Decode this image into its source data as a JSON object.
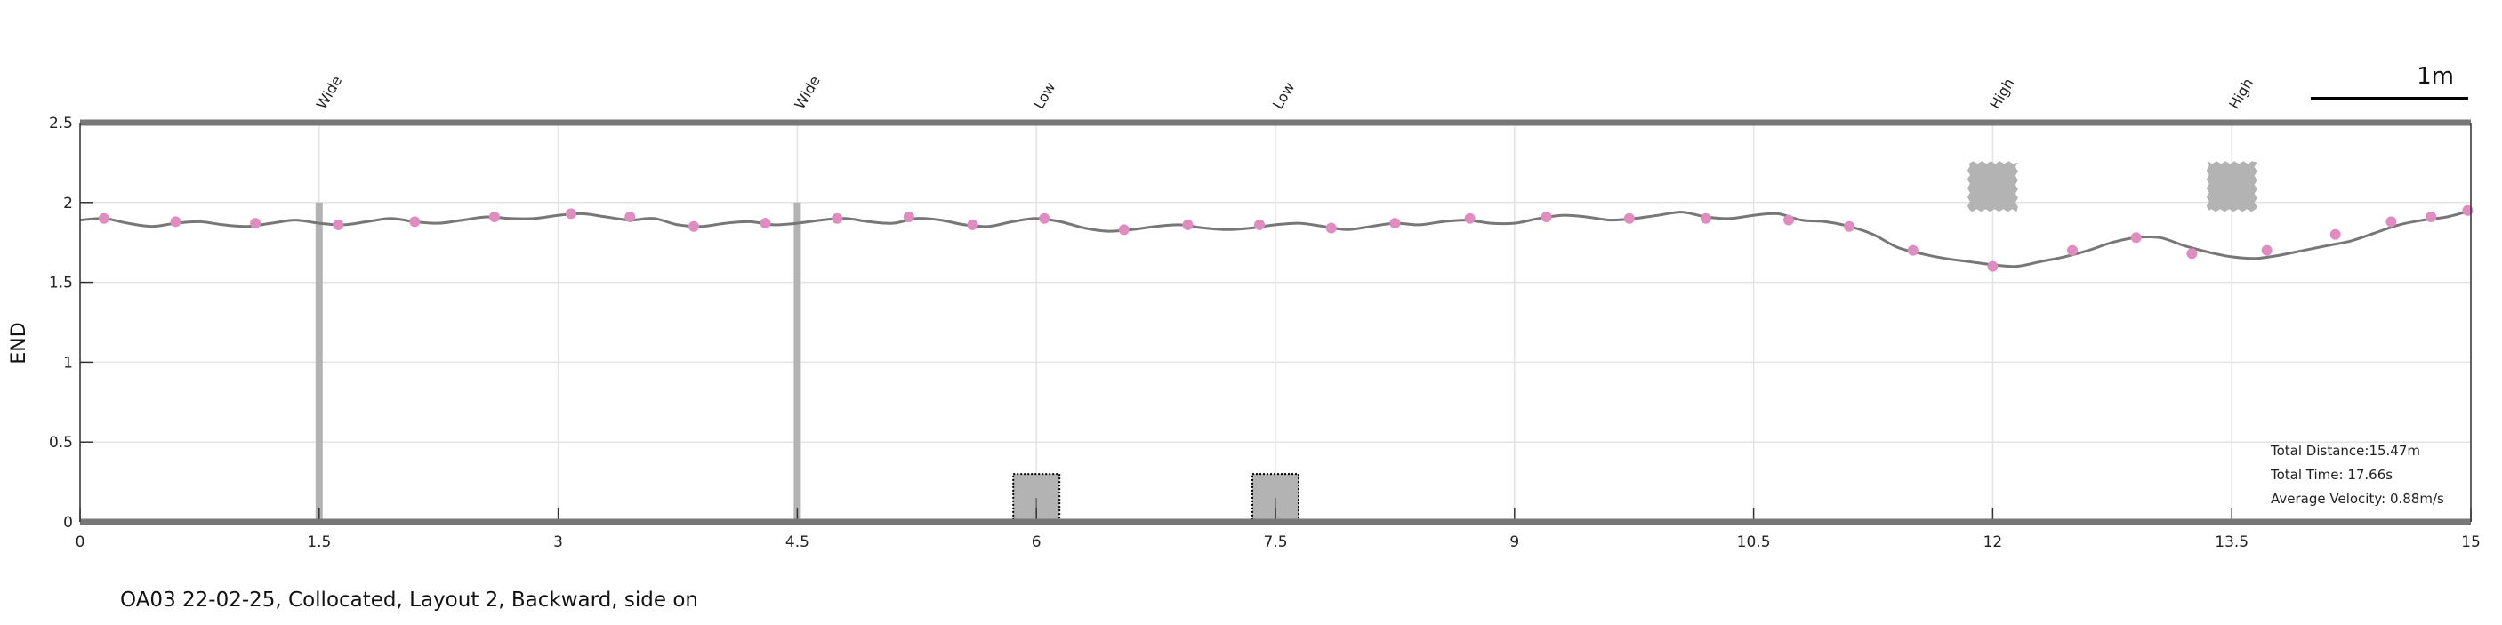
{
  "caption": "OA03 22-02-25, Collocated, Layout 2, Backward, side on",
  "chart_data": {
    "type": "line",
    "title": "",
    "xlabel": "",
    "ylabel": "END",
    "xlim": [
      0,
      15
    ],
    "ylim": [
      0,
      2.5
    ],
    "x_ticks": [
      "0",
      "1.5",
      "3",
      "4.5",
      "6",
      "7.5",
      "9",
      "10.5",
      "12",
      "13.5",
      "15"
    ],
    "y_ticks": [
      "0",
      "0.5",
      "1",
      "1.5",
      "2",
      "2.5"
    ],
    "grid": true,
    "scale_bar_label": "1m",
    "colors": {
      "line": "#777777",
      "markers": "#e08cc0",
      "obstacles": "#b3b3b3",
      "frame": "#777777"
    },
    "series": [
      {
        "x": [
          0,
          0.15,
          0.3,
          0.45,
          0.6,
          0.75,
          0.9,
          1.05,
          1.2,
          1.35,
          1.5,
          1.65,
          1.8,
          1.95,
          2.1,
          2.25,
          2.4,
          2.55,
          2.7,
          2.85,
          3.0,
          3.15,
          3.3,
          3.45,
          3.6,
          3.75,
          3.9,
          4.05,
          4.2,
          4.35,
          4.5,
          4.65,
          4.8,
          4.95,
          5.1,
          5.25,
          5.4,
          5.55,
          5.7,
          5.85,
          6.0,
          6.15,
          6.3,
          6.45,
          6.6,
          6.75,
          6.9,
          7.05,
          7.2,
          7.35,
          7.5,
          7.65,
          7.8,
          7.95,
          8.1,
          8.25,
          8.4,
          8.55,
          8.7,
          8.85,
          9.0,
          9.15,
          9.3,
          9.45,
          9.6,
          9.75,
          9.9,
          10.05,
          10.2,
          10.35,
          10.5,
          10.65,
          10.8,
          10.95,
          11.1,
          11.25,
          11.4,
          11.55,
          11.7,
          11.85,
          12.0,
          12.15,
          12.3,
          12.45,
          12.6,
          12.75,
          12.9,
          13.05,
          13.2,
          13.35,
          13.5,
          13.65,
          13.8,
          13.95,
          14.1,
          14.25,
          14.4,
          14.55,
          14.7,
          14.85,
          15.0
        ],
        "y": [
          1.89,
          1.9,
          1.87,
          1.85,
          1.87,
          1.88,
          1.86,
          1.85,
          1.87,
          1.89,
          1.87,
          1.86,
          1.88,
          1.9,
          1.88,
          1.87,
          1.89,
          1.91,
          1.9,
          1.9,
          1.92,
          1.93,
          1.91,
          1.89,
          1.9,
          1.86,
          1.85,
          1.87,
          1.88,
          1.86,
          1.87,
          1.89,
          1.9,
          1.88,
          1.87,
          1.9,
          1.89,
          1.86,
          1.85,
          1.88,
          1.9,
          1.88,
          1.84,
          1.82,
          1.83,
          1.85,
          1.86,
          1.84,
          1.83,
          1.84,
          1.86,
          1.87,
          1.85,
          1.83,
          1.85,
          1.87,
          1.86,
          1.88,
          1.89,
          1.87,
          1.87,
          1.9,
          1.92,
          1.91,
          1.89,
          1.9,
          1.92,
          1.94,
          1.91,
          1.9,
          1.92,
          1.93,
          1.89,
          1.88,
          1.85,
          1.8,
          1.72,
          1.68,
          1.65,
          1.63,
          1.61,
          1.6,
          1.63,
          1.66,
          1.7,
          1.75,
          1.78,
          1.78,
          1.73,
          1.69,
          1.66,
          1.65,
          1.67,
          1.7,
          1.73,
          1.76,
          1.81,
          1.86,
          1.89,
          1.91,
          1.95
        ]
      }
    ],
    "markers": {
      "x": [
        0.15,
        0.6,
        1.1,
        1.62,
        2.1,
        2.6,
        3.08,
        3.45,
        3.85,
        4.3,
        4.75,
        5.2,
        5.6,
        6.05,
        6.55,
        6.95,
        7.4,
        7.85,
        8.25,
        8.72,
        9.2,
        9.72,
        10.2,
        10.72,
        11.1,
        11.5,
        12.0,
        12.5,
        12.9,
        13.25,
        13.72,
        14.15,
        14.5,
        14.75,
        14.98
      ],
      "y": [
        1.9,
        1.88,
        1.87,
        1.86,
        1.88,
        1.91,
        1.93,
        1.91,
        1.85,
        1.87,
        1.9,
        1.91,
        1.86,
        1.9,
        1.83,
        1.86,
        1.86,
        1.84,
        1.87,
        1.9,
        1.91,
        1.9,
        1.9,
        1.89,
        1.85,
        1.7,
        1.6,
        1.7,
        1.78,
        1.68,
        1.7,
        1.8,
        1.88,
        1.91,
        1.95
      ]
    },
    "obstacles": [
      {
        "label": "Wide",
        "kind": "pole",
        "x": 1.5
      },
      {
        "label": "Wide",
        "kind": "pole",
        "x": 4.5
      },
      {
        "label": "Low",
        "kind": "low",
        "x": 6.0
      },
      {
        "label": "Low",
        "kind": "low",
        "x": 7.5
      },
      {
        "label": "High",
        "kind": "high",
        "x": 12.0
      },
      {
        "label": "High",
        "kind": "high",
        "x": 13.5
      }
    ],
    "stats": [
      "Total Distance:15.47m",
      "Total Time: 17.66s",
      "Average Velocity: 0.88m/s"
    ]
  }
}
